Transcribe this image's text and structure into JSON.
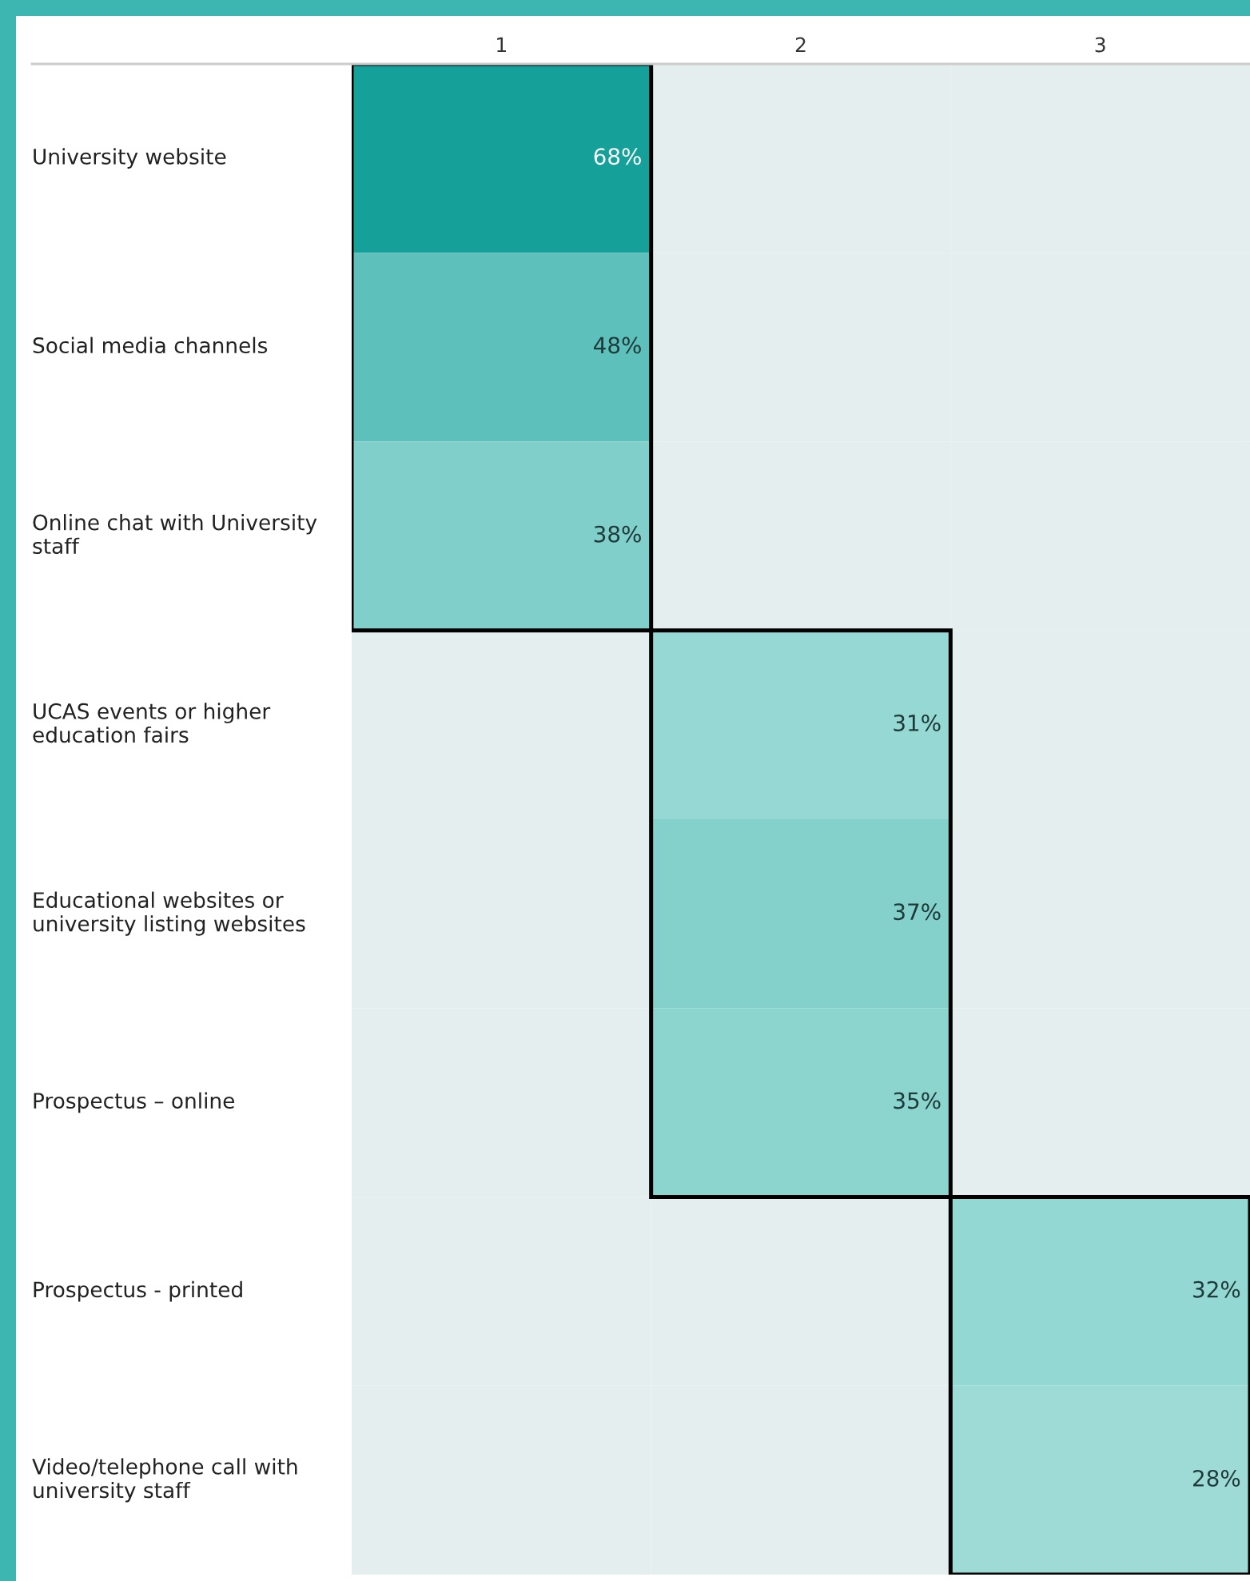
{
  "chart_data": {
    "type": "heatmap",
    "categories": [
      "1",
      "2",
      "3"
    ],
    "y_categories": [
      "University website",
      "Social media channels",
      "Online chat with University staff",
      "UCAS events or higher education fairs",
      "Educational websites or university listing websites",
      "Prospectus – online",
      "Prospectus - printed",
      "Video/telephone call with university staff"
    ],
    "cells": [
      [
        68,
        null,
        null
      ],
      [
        48,
        null,
        null
      ],
      [
        38,
        null,
        null
      ],
      [
        null,
        31,
        null
      ],
      [
        null,
        37,
        null
      ],
      [
        null,
        35,
        null
      ],
      [
        null,
        null,
        32
      ],
      [
        null,
        null,
        28
      ]
    ],
    "cell_labels": [
      [
        "68%",
        null,
        null
      ],
      [
        "48%",
        null,
        null
      ],
      [
        "38%",
        null,
        null
      ],
      [
        null,
        "31%",
        null
      ],
      [
        null,
        "37%",
        null
      ],
      [
        null,
        "35%",
        null
      ],
      [
        null,
        null,
        "32%"
      ],
      [
        null,
        null,
        "28%"
      ]
    ]
  }
}
